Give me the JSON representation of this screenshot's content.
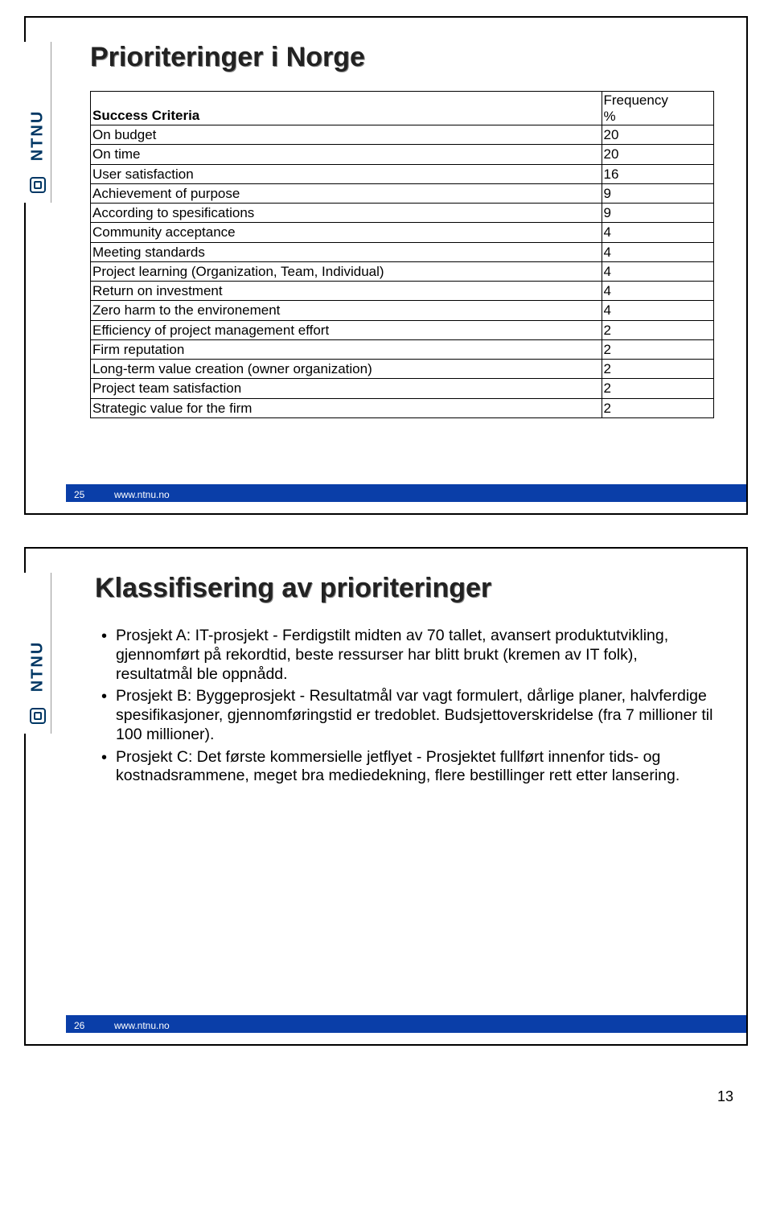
{
  "common": {
    "logo_text": "NTNU",
    "footer_url": "www.ntnu.no",
    "page_number": "13"
  },
  "slide1": {
    "number": "25",
    "title": "Prioriteringer i Norge",
    "table": {
      "header_criteria": "Success Criteria",
      "header_freq_top": "Frequency",
      "header_freq_bot": "%",
      "rows": [
        {
          "label": "On budget",
          "val": "20"
        },
        {
          "label": "On time",
          "val": "20"
        },
        {
          "label": "User satisfaction",
          "val": "16"
        },
        {
          "label": "Achievement of purpose",
          "val": "9"
        },
        {
          "label": "According to spesifications",
          "val": "9"
        },
        {
          "label": "Community acceptance",
          "val": "4"
        },
        {
          "label": "Meeting standards",
          "val": "4"
        },
        {
          "label": "Project learning (Organization, Team, Individual)",
          "val": "4"
        },
        {
          "label": "Return on investment",
          "val": "4"
        },
        {
          "label": "Zero harm to the environement",
          "val": "4"
        },
        {
          "label": "Efficiency of project management effort",
          "val": "2"
        },
        {
          "label": "Firm reputation",
          "val": "2"
        },
        {
          "label": "Long-term value creation (owner organization)",
          "val": "2"
        },
        {
          "label": "Project team satisfaction",
          "val": "2"
        },
        {
          "label": "Strategic value for the firm",
          "val": "2"
        }
      ]
    },
    "style": {
      "border_color": "#000000",
      "footer_bar_color": "#0a3ea8",
      "title_fontsize": 34,
      "table_fontsize": 17
    }
  },
  "slide2": {
    "number": "26",
    "title": "Klassifisering av prioriteringer",
    "bullets": [
      "Prosjekt A: IT-prosjekt - Ferdigstilt midten av 70 tallet, avansert produktutvikling, gjennomført på rekordtid, beste ressurser har blitt brukt (kremen av IT folk), resultatmål ble oppnådd.",
      "Prosjekt B: Byggeprosjekt - Resultatmål var vagt formulert, dårlige planer, halvferdige spesifikasjoner, gjennomføringstid er tredoblet. Budsjettoverskridelse (fra 7 millioner til 100 millioner).",
      "Prosjekt C: Det første kommersielle jetflyet - Prosjektet fullført innenfor tids- og kostnadsrammene, meget bra mediedekning, flere bestillinger rett etter lansering."
    ],
    "style": {
      "bullet_fontsize": 19.5,
      "title_fontsize": 34
    }
  }
}
